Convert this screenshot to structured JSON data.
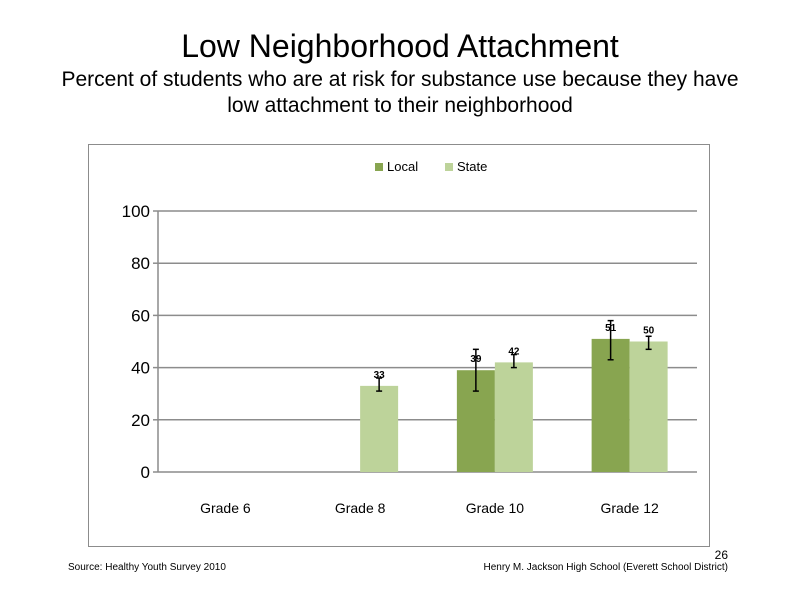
{
  "slide": {
    "title": "Low Neighborhood  Attachment",
    "subtitle": "Percent of students who are at risk for substance use because they have low attachment to their neighborhood",
    "source": "Source: Healthy Youth Survey 2010",
    "school": "Henry M. Jackson High School (Everett School District)",
    "page_number": "26"
  },
  "chart_data": {
    "type": "bar",
    "title": "",
    "xlabel": "",
    "ylabel": "",
    "categories": [
      "Grade 6",
      "Grade 8",
      "Grade 10",
      "Grade 12"
    ],
    "ylim": [
      0,
      100
    ],
    "yticks": [
      0,
      20,
      40,
      60,
      80,
      100
    ],
    "grid": true,
    "legend_position": "top",
    "series": [
      {
        "name": "Local",
        "color": "#88A550",
        "values": [
          null,
          null,
          39,
          51
        ],
        "labels": [
          "",
          "",
          "39",
          "51"
        ],
        "error_low": [
          null,
          null,
          31,
          43
        ],
        "error_high": [
          null,
          null,
          47,
          58
        ]
      },
      {
        "name": "State",
        "color": "#BDD39A",
        "values": [
          null,
          33,
          42,
          50
        ],
        "labels": [
          "",
          "33",
          "42",
          "50"
        ],
        "error_low": [
          null,
          31,
          40,
          47
        ],
        "error_high": [
          null,
          36,
          45,
          52
        ]
      }
    ]
  }
}
